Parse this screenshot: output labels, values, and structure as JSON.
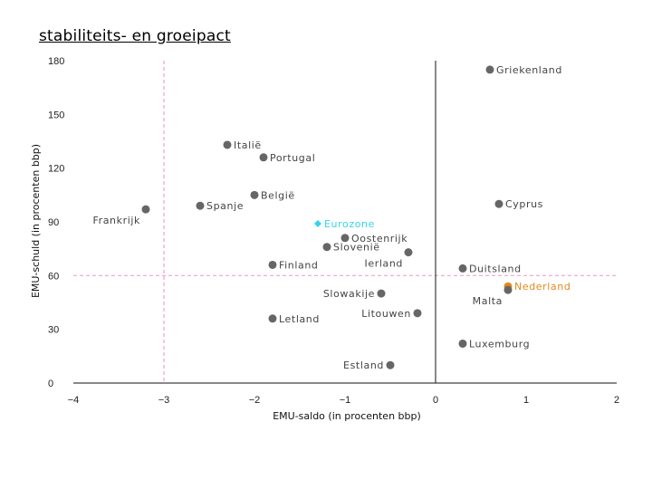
{
  "chart_data": {
    "type": "scatter",
    "title": "stabiliteits- en groeipact",
    "xlabel": "EMU-saldo (in procenten bbp)",
    "ylabel": "EMU-schuld (in procenten bbp)",
    "xlim": [
      -4,
      2
    ],
    "ylim": [
      0,
      180
    ],
    "x_ticks": [
      "−4",
      "−3",
      "−2",
      "−1",
      "0",
      "1",
      "2"
    ],
    "y_ticks": [
      "0",
      "30",
      "60",
      "90",
      "120",
      "150",
      "180"
    ],
    "grid": false,
    "reference_lines": {
      "deficit_limit_x": -3,
      "debt_limit_y": 60,
      "zero_x": 0
    },
    "colors": {
      "default": "#666666",
      "eurozone": "#33d6e8",
      "nederland": "#e08a1e",
      "reference": "#f0a0d0"
    },
    "points": [
      {
        "label": "Griekenland",
        "x": 0.6,
        "y": 175,
        "color": "default",
        "anchor": "right"
      },
      {
        "label": "Italië",
        "x": -2.3,
        "y": 133,
        "color": "default",
        "anchor": "right"
      },
      {
        "label": "Portugal",
        "x": -1.9,
        "y": 126,
        "color": "default",
        "anchor": "right"
      },
      {
        "label": "België",
        "x": -2.0,
        "y": 105,
        "color": "default",
        "anchor": "right"
      },
      {
        "label": "Spanje",
        "x": -2.6,
        "y": 99,
        "color": "default",
        "anchor": "right"
      },
      {
        "label": "Cyprus",
        "x": 0.7,
        "y": 100,
        "color": "default",
        "anchor": "right"
      },
      {
        "label": "Frankrijk",
        "x": -3.2,
        "y": 97,
        "color": "default",
        "anchor": "below-left"
      },
      {
        "label": "Eurozone",
        "x": -1.3,
        "y": 89,
        "color": "eurozone",
        "anchor": "right",
        "marker": "diamond"
      },
      {
        "label": "Oostenrijk",
        "x": -1.0,
        "y": 81,
        "color": "default",
        "anchor": "right"
      },
      {
        "label": "Slovenië",
        "x": -1.2,
        "y": 76,
        "color": "default",
        "anchor": "right"
      },
      {
        "label": "Ierland",
        "x": -0.3,
        "y": 73,
        "color": "default",
        "anchor": "below-left"
      },
      {
        "label": "Finland",
        "x": -1.8,
        "y": 66,
        "color": "default",
        "anchor": "right"
      },
      {
        "label": "Duitsland",
        "x": 0.3,
        "y": 64,
        "color": "default",
        "anchor": "right"
      },
      {
        "label": "Nederland",
        "x": 0.8,
        "y": 54,
        "color": "nederland",
        "anchor": "right"
      },
      {
        "label": "Malta",
        "x": 0.8,
        "y": 52,
        "color": "default",
        "anchor": "below-left"
      },
      {
        "label": "Slowakije",
        "x": -0.6,
        "y": 50,
        "color": "default",
        "anchor": "left"
      },
      {
        "label": "Litouwen",
        "x": -0.2,
        "y": 39,
        "color": "default",
        "anchor": "left"
      },
      {
        "label": "Letland",
        "x": -1.8,
        "y": 36,
        "color": "default",
        "anchor": "right"
      },
      {
        "label": "Luxemburg",
        "x": 0.3,
        "y": 22,
        "color": "default",
        "anchor": "right"
      },
      {
        "label": "Estland",
        "x": -0.5,
        "y": 10,
        "color": "default",
        "anchor": "left"
      }
    ]
  }
}
